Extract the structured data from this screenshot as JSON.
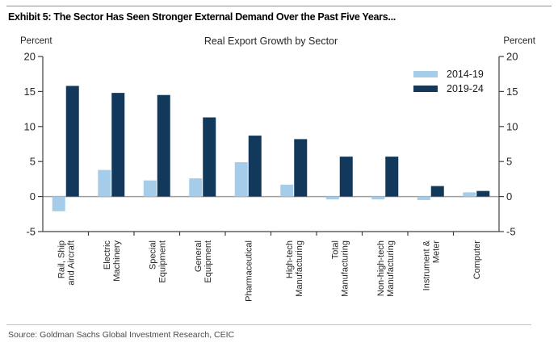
{
  "page": {
    "exhibit_title": "Exhibit 5: The Sector Has Seen Stronger External Demand Over the Past Five Years...",
    "source": "Source: Goldman Sachs Global Investment Research, CEIC"
  },
  "colors": {
    "series_light_blue": "#a5cdea",
    "series_dark_navy": "#12395c",
    "axis_line": "#404040",
    "zero_line": "#9e9e9e",
    "text": "#262626"
  },
  "chart_data": {
    "type": "bar",
    "title": "Real Export Growth by Sector",
    "left_axis_label": "Percent",
    "right_axis_label": "Percent",
    "xlabel": "",
    "ylabel": "Percent",
    "ylim": [
      -5,
      20
    ],
    "yticks": [
      20,
      15,
      10,
      5,
      0,
      -5
    ],
    "grid": "zero-line-only",
    "legend_position": "top-right",
    "categories": [
      "Rail, Ship and Aircraft",
      "Electric Machinery",
      "Special Equipment",
      "General Equipment",
      "Pharmaceutical",
      "High-tech Manufacturing",
      "Total Manufacturing",
      "Non-high-tech Manufacturing",
      "Instrument & Meter",
      "Computer"
    ],
    "category_lines": [
      [
        "Rail, Ship",
        "and Aircraft"
      ],
      [
        "Electric",
        "Machinery"
      ],
      [
        "Special",
        "Equipment"
      ],
      [
        "General",
        "Equipment"
      ],
      [
        "Pharmaceutical"
      ],
      [
        "High-tech",
        "Manufacturing"
      ],
      [
        "Total",
        "Manufacturing"
      ],
      [
        "Non-high-tech",
        "Manufacturing"
      ],
      [
        "Instrument &",
        "Meter"
      ],
      [
        "Computer"
      ]
    ],
    "series": [
      {
        "name": "2014-19",
        "color": "#a5cdea",
        "values": [
          -2.1,
          3.8,
          2.3,
          2.6,
          4.9,
          1.7,
          -0.4,
          -0.4,
          -0.5,
          0.6
        ]
      },
      {
        "name": "2019-24",
        "color": "#12395c",
        "values": [
          15.8,
          14.8,
          14.5,
          11.3,
          8.7,
          8.2,
          5.7,
          5.7,
          1.5,
          0.8
        ]
      }
    ]
  }
}
